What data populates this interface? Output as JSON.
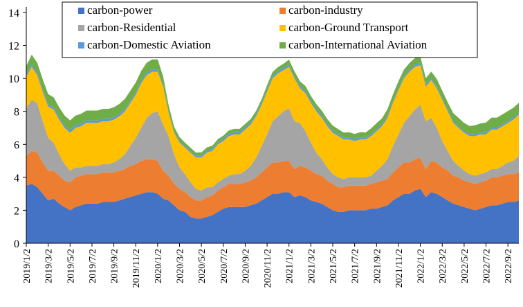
{
  "chart_data": {
    "type": "area",
    "stacked": true,
    "title": "",
    "xlabel": "",
    "ylabel": "",
    "ylim": [
      0,
      14
    ],
    "yticks": [
      0,
      2,
      4,
      6,
      8,
      10,
      12,
      14
    ],
    "grid": false,
    "legend_position": "top",
    "x_tick_labels": [
      "2019/1/2",
      "2019/3/2",
      "2019/5/2",
      "2019/7/2",
      "2019/9/2",
      "2019/11/2",
      "2020/1/2",
      "2020/3/2",
      "2020/5/2",
      "2020/7/2",
      "2020/9/2",
      "2020/11/2",
      "2021/1/2",
      "2021/3/2",
      "2021/5/2",
      "2021/7/2",
      "2021/9/2",
      "2021/11/2",
      "2022/1/2",
      "2022/3/2",
      "2022/5/2",
      "2022/7/2",
      "2022/9/2"
    ],
    "x": [
      "2019/1/2",
      "2019/1/17",
      "2019/2/2",
      "2019/2/17",
      "2019/3/2",
      "2019/3/17",
      "2019/4/2",
      "2019/4/17",
      "2019/5/2",
      "2019/5/17",
      "2019/6/2",
      "2019/6/17",
      "2019/7/2",
      "2019/7/17",
      "2019/8/2",
      "2019/8/17",
      "2019/9/2",
      "2019/9/17",
      "2019/10/2",
      "2019/10/17",
      "2019/11/2",
      "2019/11/17",
      "2019/12/2",
      "2019/12/17",
      "2020/1/2",
      "2020/1/17",
      "2020/2/2",
      "2020/2/17",
      "2020/3/2",
      "2020/3/17",
      "2020/4/2",
      "2020/4/17",
      "2020/5/2",
      "2020/5/17",
      "2020/6/2",
      "2020/6/17",
      "2020/7/2",
      "2020/7/17",
      "2020/8/2",
      "2020/8/17",
      "2020/9/2",
      "2020/9/17",
      "2020/10/2",
      "2020/10/17",
      "2020/11/2",
      "2020/11/17",
      "2020/12/2",
      "2020/12/17",
      "2021/1/2",
      "2021/1/17",
      "2021/2/2",
      "2021/2/17",
      "2021/3/2",
      "2021/3/17",
      "2021/4/2",
      "2021/4/17",
      "2021/5/2",
      "2021/5/17",
      "2021/6/2",
      "2021/6/17",
      "2021/7/2",
      "2021/7/17",
      "2021/8/2",
      "2021/8/17",
      "2021/9/2",
      "2021/9/17",
      "2021/10/2",
      "2021/10/17",
      "2021/11/2",
      "2021/11/17",
      "2021/12/2",
      "2021/12/17",
      "2022/1/2",
      "2022/1/17",
      "2022/2/2",
      "2022/2/17",
      "2022/3/2",
      "2022/3/17",
      "2022/4/2",
      "2022/4/17",
      "2022/5/2",
      "2022/5/17",
      "2022/6/2",
      "2022/6/17",
      "2022/7/2",
      "2022/7/17",
      "2022/8/2",
      "2022/8/17",
      "2022/9/2",
      "2022/9/17",
      "2022/10/2"
    ],
    "series": [
      {
        "name": "carbon-power",
        "color": "#4472C4",
        "values": [
          3.5,
          3.6,
          3.4,
          3.0,
          2.6,
          2.7,
          2.4,
          2.2,
          2.0,
          2.2,
          2.3,
          2.4,
          2.4,
          2.4,
          2.5,
          2.5,
          2.5,
          2.6,
          2.7,
          2.8,
          2.9,
          3.0,
          3.1,
          3.1,
          3.0,
          2.7,
          2.6,
          2.3,
          2.0,
          1.9,
          1.6,
          1.5,
          1.5,
          1.6,
          1.7,
          1.9,
          2.1,
          2.2,
          2.2,
          2.2,
          2.2,
          2.3,
          2.4,
          2.6,
          2.8,
          3.0,
          3.0,
          3.1,
          3.1,
          2.8,
          2.9,
          2.8,
          2.6,
          2.5,
          2.4,
          2.2,
          2.0,
          1.9,
          1.9,
          2.0,
          2.0,
          2.0,
          2.0,
          2.1,
          2.1,
          2.2,
          2.3,
          2.6,
          2.8,
          3.0,
          3.0,
          3.2,
          3.3,
          2.8,
          3.1,
          3.0,
          2.8,
          2.6,
          2.4,
          2.3,
          2.2,
          2.1,
          2.0,
          2.1,
          2.2,
          2.3,
          2.3,
          2.4,
          2.5,
          2.5,
          2.6
        ]
      },
      {
        "name": "carbon-industry",
        "color": "#ED7D31",
        "values": [
          1.8,
          2.0,
          2.1,
          1.9,
          1.8,
          1.7,
          1.7,
          1.6,
          1.7,
          1.8,
          1.8,
          1.8,
          1.8,
          1.8,
          1.8,
          1.8,
          1.8,
          1.8,
          1.8,
          1.9,
          1.9,
          2.0,
          2.0,
          2.0,
          2.0,
          1.7,
          1.5,
          1.3,
          1.3,
          1.2,
          1.2,
          1.1,
          1.1,
          1.2,
          1.2,
          1.3,
          1.3,
          1.4,
          1.4,
          1.4,
          1.5,
          1.5,
          1.6,
          1.7,
          1.8,
          1.9,
          1.9,
          1.9,
          1.9,
          1.7,
          1.8,
          1.8,
          1.8,
          1.7,
          1.7,
          1.6,
          1.6,
          1.5,
          1.5,
          1.5,
          1.5,
          1.5,
          1.5,
          1.5,
          1.6,
          1.6,
          1.6,
          1.7,
          1.8,
          1.9,
          1.9,
          1.9,
          1.9,
          1.7,
          1.9,
          1.9,
          1.8,
          1.8,
          1.7,
          1.7,
          1.6,
          1.6,
          1.6,
          1.6,
          1.6,
          1.7,
          1.7,
          1.7,
          1.7,
          1.7,
          1.7
        ]
      },
      {
        "name": "carbon-Residential",
        "color": "#A5A5A5",
        "values": [
          2.9,
          3.1,
          3.0,
          2.5,
          2.0,
          1.7,
          1.3,
          1.0,
          0.7,
          0.6,
          0.5,
          0.5,
          0.5,
          0.5,
          0.5,
          0.5,
          0.6,
          0.7,
          0.9,
          1.2,
          1.6,
          2.0,
          2.5,
          2.8,
          3.0,
          2.8,
          2.4,
          1.8,
          1.3,
          1.1,
          0.9,
          0.7,
          0.6,
          0.6,
          0.5,
          0.5,
          0.5,
          0.5,
          0.6,
          0.6,
          0.7,
          0.9,
          1.2,
          1.6,
          2.0,
          2.5,
          2.8,
          3.0,
          3.2,
          2.9,
          2.6,
          2.2,
          1.7,
          1.3,
          1.0,
          0.8,
          0.6,
          0.6,
          0.5,
          0.5,
          0.5,
          0.5,
          0.5,
          0.5,
          0.7,
          0.9,
          1.2,
          1.6,
          2.0,
          2.4,
          2.8,
          3.0,
          3.2,
          2.9,
          2.6,
          2.1,
          1.6,
          1.2,
          0.9,
          0.7,
          0.6,
          0.5,
          0.5,
          0.5,
          0.5,
          0.5,
          0.5,
          0.6,
          0.7,
          0.8,
          1.0
        ]
      },
      {
        "name": "carbon-Ground Transport",
        "color": "#FFC000",
        "values": [
          1.9,
          2.0,
          1.7,
          1.8,
          1.9,
          2.0,
          2.1,
          2.2,
          2.3,
          2.4,
          2.5,
          2.6,
          2.6,
          2.6,
          2.6,
          2.6,
          2.6,
          2.6,
          2.6,
          2.6,
          2.6,
          2.7,
          2.6,
          2.5,
          2.4,
          2.3,
          1.4,
          1.3,
          1.5,
          1.6,
          1.8,
          1.9,
          2.0,
          2.1,
          2.2,
          2.3,
          2.3,
          2.4,
          2.4,
          2.4,
          2.5,
          2.5,
          2.5,
          2.5,
          2.6,
          2.6,
          2.6,
          2.5,
          2.5,
          2.6,
          2.1,
          2.3,
          2.4,
          2.5,
          2.5,
          2.5,
          2.5,
          2.5,
          2.4,
          2.3,
          2.2,
          2.3,
          2.3,
          2.4,
          2.4,
          2.4,
          2.5,
          2.6,
          2.7,
          2.7,
          2.7,
          2.6,
          2.4,
          2.1,
          2.3,
          2.4,
          2.5,
          2.4,
          2.3,
          2.3,
          2.3,
          2.3,
          2.4,
          2.4,
          2.3,
          2.4,
          2.4,
          2.4,
          2.4,
          2.5,
          2.5
        ]
      },
      {
        "name": "carbon-Domestic Aviation",
        "color": "#5B9BD5",
        "values": [
          0.15,
          0.15,
          0.15,
          0.15,
          0.15,
          0.15,
          0.15,
          0.15,
          0.15,
          0.15,
          0.15,
          0.15,
          0.15,
          0.15,
          0.15,
          0.15,
          0.15,
          0.15,
          0.15,
          0.15,
          0.15,
          0.15,
          0.15,
          0.15,
          0.15,
          0.12,
          0.08,
          0.08,
          0.09,
          0.1,
          0.1,
          0.1,
          0.11,
          0.12,
          0.12,
          0.12,
          0.13,
          0.14,
          0.14,
          0.14,
          0.14,
          0.14,
          0.14,
          0.14,
          0.14,
          0.14,
          0.14,
          0.14,
          0.14,
          0.13,
          0.13,
          0.14,
          0.14,
          0.14,
          0.14,
          0.14,
          0.14,
          0.12,
          0.12,
          0.13,
          0.13,
          0.13,
          0.12,
          0.12,
          0.13,
          0.13,
          0.13,
          0.13,
          0.13,
          0.13,
          0.13,
          0.13,
          0.13,
          0.12,
          0.12,
          0.12,
          0.11,
          0.1,
          0.1,
          0.1,
          0.1,
          0.11,
          0.11,
          0.12,
          0.12,
          0.12,
          0.12,
          0.12,
          0.12,
          0.12,
          0.12
        ]
      },
      {
        "name": "carbon-International Aviation",
        "color": "#70AD47",
        "values": [
          0.5,
          0.6,
          0.6,
          0.6,
          0.6,
          0.6,
          0.6,
          0.6,
          0.6,
          0.6,
          0.6,
          0.6,
          0.6,
          0.6,
          0.6,
          0.6,
          0.6,
          0.6,
          0.6,
          0.6,
          0.6,
          0.6,
          0.6,
          0.6,
          0.6,
          0.5,
          0.4,
          0.3,
          0.25,
          0.2,
          0.2,
          0.2,
          0.2,
          0.2,
          0.2,
          0.2,
          0.2,
          0.2,
          0.2,
          0.2,
          0.2,
          0.2,
          0.2,
          0.2,
          0.25,
          0.25,
          0.25,
          0.25,
          0.3,
          0.3,
          0.3,
          0.3,
          0.3,
          0.3,
          0.3,
          0.3,
          0.3,
          0.3,
          0.3,
          0.3,
          0.3,
          0.3,
          0.3,
          0.35,
          0.35,
          0.35,
          0.4,
          0.4,
          0.4,
          0.4,
          0.4,
          0.4,
          0.4,
          0.4,
          0.4,
          0.45,
          0.45,
          0.45,
          0.5,
          0.5,
          0.5,
          0.5,
          0.55,
          0.55,
          0.6,
          0.6,
          0.6,
          0.6,
          0.6,
          0.6,
          0.6
        ]
      }
    ]
  }
}
